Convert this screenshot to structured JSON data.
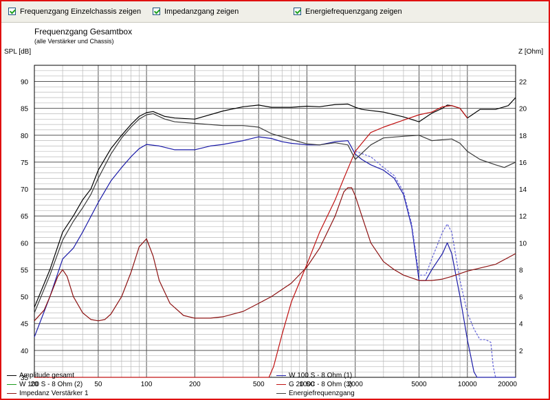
{
  "toolbar": {
    "checkboxes": [
      {
        "label": "Frequenzgang Einzelchassis zeigen",
        "checked": true
      },
      {
        "label": "Impedanzgang zeigen",
        "checked": true
      },
      {
        "label": "Energiefrequenzgang zeigen",
        "checked": true
      }
    ]
  },
  "chart_data": {
    "type": "line",
    "title": "Frequenzgang Gesamtbox",
    "subtitle": "(alle Verstärker und Chassis)",
    "ylabel": "SPL [dB]",
    "y2label": "Z [Ohm]",
    "x_scale": "log",
    "xlim": [
      20,
      20000
    ],
    "ylim": [
      35,
      93
    ],
    "y2lim": [
      0,
      23.2
    ],
    "x_ticks": [
      20,
      50,
      100,
      200,
      500,
      1000,
      2000,
      5000,
      10000,
      20000
    ],
    "x_tick_labels": [
      "20",
      "50",
      "100",
      "200",
      "500",
      "1000",
      "2000",
      "5000",
      "10000",
      "20000"
    ],
    "y_ticks": [
      35,
      40,
      45,
      50,
      55,
      60,
      65,
      70,
      75,
      80,
      85,
      90
    ],
    "y_tick_labels": [
      "35",
      "40",
      "45",
      "50",
      "55",
      "60",
      "65",
      "70",
      "75",
      "80",
      "85",
      "90"
    ],
    "y2_ticks": [
      2,
      4,
      6,
      8,
      10,
      12,
      14,
      16,
      18,
      20,
      22
    ],
    "y2_tick_labels": [
      "2",
      "4",
      "6",
      "8",
      "10",
      "12",
      "14",
      "16",
      "18",
      "20",
      "22"
    ],
    "grid": true,
    "legend_position": "bottom",
    "series": [
      {
        "name": "Amplitude gesamt",
        "color": "#000000",
        "axis": "left",
        "style": "solid",
        "x": [
          20,
          25,
          30,
          35,
          40,
          45,
          50,
          60,
          70,
          80,
          90,
          100,
          110,
          130,
          150,
          200,
          300,
          400,
          500,
          600,
          800,
          1000,
          1200,
          1500,
          1800,
          2000,
          2200,
          2500,
          3000,
          4000,
          5000,
          6000,
          7000,
          7500,
          8000,
          9000,
          10000,
          12000,
          15000,
          18000,
          20000
        ],
        "y": [
          48,
          55,
          62,
          65,
          68,
          70,
          73.5,
          77.5,
          80,
          82,
          83.5,
          84.2,
          84.4,
          83.5,
          83.2,
          83,
          84.5,
          85.3,
          85.6,
          85.2,
          85.2,
          85.4,
          85.3,
          85.7,
          85.8,
          85.2,
          84.8,
          84.6,
          84.3,
          83.4,
          82.5,
          84.1,
          85,
          85.6,
          85.5,
          85,
          83.2,
          84.8,
          84.8,
          85.5,
          87
        ]
      },
      {
        "name": "W 100 S - 8 Ohm (1)",
        "color": "#1a1aa8",
        "axis": "left",
        "style": "solid",
        "x": [
          20,
          25,
          30,
          35,
          40,
          50,
          60,
          70,
          80,
          90,
          100,
          120,
          150,
          200,
          250,
          300,
          400,
          500,
          600,
          700,
          800,
          1000,
          1200,
          1500,
          1800,
          2000,
          2200,
          2500,
          3000,
          3500,
          4000,
          4500,
          5000,
          5500,
          6000,
          7000,
          7500,
          8000,
          9000,
          10000,
          11000,
          11500,
          20000
        ],
        "y": [
          42.5,
          50,
          57,
          59,
          62,
          67.5,
          71.5,
          74,
          76,
          77.5,
          78.3,
          78,
          77.3,
          77.3,
          78,
          78.3,
          79,
          79.7,
          79.4,
          78.8,
          78.5,
          78.2,
          78.2,
          78.8,
          79,
          76.5,
          75.5,
          74.5,
          73.5,
          72,
          69,
          63,
          53,
          53,
          55,
          58,
          60,
          58,
          50,
          42,
          36,
          35,
          35
        ]
      },
      {
        "name": "W 100 S - 8 Ohm (2)",
        "color": "#6060d8",
        "axis": "left",
        "style": "dashed",
        "x": [
          2000,
          2500,
          3000,
          3500,
          4000,
          4500,
          5000,
          5500,
          6000,
          7000,
          7500,
          8000,
          9000,
          10000,
          11000,
          12000,
          13000,
          14000,
          14500,
          15000
        ],
        "y": [
          77,
          76,
          74,
          72.5,
          69.5,
          63.5,
          54,
          54,
          57,
          62,
          63.5,
          62,
          53,
          47,
          44,
          42,
          42,
          41.5,
          37,
          35
        ]
      },
      {
        "name": "G 20 SC - 8 Ohm (3)",
        "color": "#c01010",
        "axis": "left",
        "style": "solid",
        "x": [
          20,
          500,
          580,
          620,
          700,
          800,
          1000,
          1200,
          1500,
          1700,
          2000,
          2200,
          2500,
          3000,
          4000,
          5000,
          6000,
          7000,
          8000,
          9000,
          10000
        ],
        "y": [
          35,
          35,
          35,
          37,
          43,
          49,
          56,
          62,
          68,
          72,
          77,
          78.5,
          80.5,
          81.5,
          82.8,
          83.8,
          84.3,
          85.3,
          85.5,
          85,
          83.2
        ]
      },
      {
        "name": "Impedanz Verstärker 1",
        "color": "#8c1010",
        "axis": "right",
        "style": "solid",
        "x": [
          20,
          23,
          25,
          28,
          30,
          32,
          35,
          40,
          45,
          50,
          55,
          60,
          70,
          80,
          90,
          100,
          110,
          120,
          140,
          170,
          200,
          250,
          300,
          400,
          500,
          600,
          800,
          1000,
          1200,
          1500,
          1700,
          1800,
          1900,
          2000,
          2200,
          2500,
          3000,
          3500,
          4000,
          5000,
          6000,
          7000,
          8000,
          10000,
          15000,
          20000
        ],
        "y": [
          4.2,
          5.0,
          6.0,
          7.5,
          8.0,
          7.5,
          6.0,
          4.8,
          4.3,
          4.2,
          4.3,
          4.7,
          6.0,
          7.8,
          9.7,
          10.3,
          9.0,
          7.2,
          5.5,
          4.6,
          4.4,
          4.4,
          4.5,
          4.9,
          5.5,
          6.0,
          7.0,
          8.2,
          9.6,
          12.0,
          13.8,
          14.1,
          14.1,
          13.5,
          12.0,
          10.0,
          8.6,
          8.0,
          7.6,
          7.2,
          7.2,
          7.3,
          7.5,
          7.9,
          8.4,
          9.2
        ]
      },
      {
        "name": "Energiefrequenzgang",
        "color": "#3a3a3a",
        "axis": "left",
        "style": "solid",
        "x": [
          20,
          25,
          30,
          35,
          40,
          45,
          50,
          60,
          70,
          80,
          90,
          100,
          110,
          130,
          150,
          200,
          300,
          400,
          500,
          600,
          800,
          1000,
          1200,
          1500,
          1800,
          2000,
          2500,
          3000,
          4000,
          5000,
          6000,
          8000,
          9000,
          10000,
          12000,
          15000,
          17000,
          20000
        ],
        "y": [
          47,
          54,
          60.5,
          64,
          66.5,
          69,
          72,
          76.5,
          79.5,
          81.5,
          83,
          83.8,
          84,
          83,
          82.5,
          82.2,
          81.8,
          81.8,
          81.5,
          80.3,
          79.2,
          78.4,
          78.2,
          78.6,
          78.2,
          75.5,
          78.2,
          79.5,
          79.8,
          80,
          79,
          79.3,
          78.5,
          77,
          75.5,
          74.5,
          74,
          75
        ]
      }
    ]
  }
}
